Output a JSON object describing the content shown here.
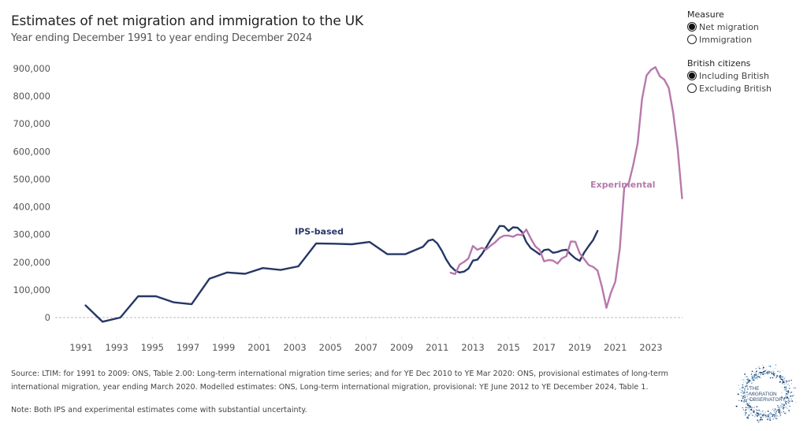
{
  "header": {
    "title": "Estimates of net migration and immigration to the UK",
    "subtitle": "Year ending December 1991 to year ending December 2024"
  },
  "filters": {
    "measure": {
      "title": "Measure",
      "options": [
        {
          "label": "Net migration",
          "selected": true
        },
        {
          "label": "Immigration",
          "selected": false
        }
      ]
    },
    "british_citizens": {
      "title": "British citizens",
      "options": [
        {
          "label": "Including British",
          "selected": true
        },
        {
          "label": "Excluding British",
          "selected": false
        }
      ]
    }
  },
  "footer": {
    "source_line1": "Source: LTIM: for 1991 to 2009: ONS, Table 2.00: Long-term international migration time series; and for YE Dec 2010 to YE Mar 2020: ONS, provisional estimates of long-term",
    "source_line2": "international migration, year ending March 2020. Modelled estimates: ONS, Long-term international migration, provisional: YE June 2012 to YE December 2024, Table 1.",
    "note": "Note: Both IPS and experimental estimates come with substantial uncertainty."
  },
  "logo": {
    "lines": [
      "THE",
      "MIGRATION",
      "OBSERVATORY"
    ]
  },
  "colors": {
    "ips": "#263766",
    "experimental": "#B779AC",
    "zero_line": "#bbbbbb",
    "axis_text": "#555555"
  },
  "chart_data": {
    "type": "line",
    "title": "Estimates of net migration and immigration to the UK",
    "subtitle": "Year ending December 1991 to year ending December 2024",
    "xlabel": "",
    "ylabel": "",
    "xlim": [
      1990.5,
      2024.8
    ],
    "ylim": [
      -30000,
      940000
    ],
    "x_ticks": [
      1991,
      1993,
      1995,
      1997,
      1999,
      2001,
      2003,
      2005,
      2007,
      2009,
      2011,
      2013,
      2015,
      2017,
      2019,
      2021,
      2023
    ],
    "y_ticks": [
      0,
      100000,
      200000,
      300000,
      400000,
      500000,
      600000,
      700000,
      800000,
      900000
    ],
    "y_tick_labels": [
      "0",
      "100,000",
      "200,000",
      "300,000",
      "400,000",
      "500,000",
      "600,000",
      "700,000",
      "800,000",
      "900,000"
    ],
    "grid": false,
    "zero_line": "dashed",
    "series": [
      {
        "name": "IPS-based",
        "label": "IPS-based",
        "x": [
          1991.25,
          1992.2,
          1993.2,
          1994.2,
          1995.2,
          1996.2,
          1997.2,
          1998.2,
          1999.2,
          2000.2,
          2001.2,
          2002.2,
          2003.2,
          2004.2,
          2005.2,
          2006.2,
          2007.2,
          2008.2,
          2009.2,
          2010.2,
          2010.5,
          2010.75,
          2011.0,
          2011.25,
          2011.5,
          2011.75,
          2012.0,
          2012.25,
          2012.5,
          2012.75,
          2013.0,
          2013.25,
          2013.5,
          2013.75,
          2014.0,
          2014.25,
          2014.5,
          2014.75,
          2015.0,
          2015.25,
          2015.5,
          2015.75,
          2016.0,
          2016.25,
          2016.5,
          2016.75,
          2017.0,
          2017.25,
          2017.5,
          2017.75,
          2018.0,
          2018.25,
          2018.5,
          2018.75,
          2019.0,
          2019.25,
          2019.5,
          2019.75,
          2020.0
        ],
        "values": [
          44000,
          -15000,
          0,
          77000,
          77000,
          55000,
          48000,
          140000,
          163000,
          158000,
          179000,
          172000,
          185000,
          268000,
          267000,
          265000,
          273000,
          229000,
          229000,
          256000,
          278000,
          282000,
          268000,
          242000,
          210000,
          185000,
          170000,
          163000,
          166000,
          177000,
          206000,
          209000,
          229000,
          254000,
          282000,
          305000,
          331000,
          330000,
          313000,
          326000,
          325000,
          310000,
          273000,
          251000,
          240000,
          228000,
          244000,
          246000,
          234000,
          237000,
          243000,
          245000,
          228000,
          214000,
          205000,
          235000,
          258000,
          280000,
          313000
        ]
      },
      {
        "name": "Experimental",
        "label": "Experimental",
        "x": [
          2011.75,
          2012.0,
          2012.25,
          2012.5,
          2012.75,
          2013.0,
          2013.25,
          2013.5,
          2013.75,
          2014.0,
          2014.25,
          2014.5,
          2014.75,
          2015.0,
          2015.25,
          2015.5,
          2015.75,
          2016.0,
          2016.25,
          2016.5,
          2016.75,
          2017.0,
          2017.25,
          2017.5,
          2017.75,
          2018.0,
          2018.25,
          2018.5,
          2018.75,
          2019.0,
          2019.25,
          2019.5,
          2019.75,
          2020.0,
          2020.25,
          2020.5,
          2020.75,
          2021.0,
          2021.25,
          2021.5,
          2021.75,
          2022.0,
          2022.25,
          2022.5,
          2022.75,
          2023.0,
          2023.25,
          2023.5,
          2023.75,
          2024.0,
          2024.25,
          2024.5,
          2024.75
        ],
        "values": [
          162000,
          157000,
          191000,
          201000,
          214000,
          259000,
          245000,
          252000,
          246000,
          260000,
          272000,
          288000,
          296000,
          296000,
          292000,
          300000,
          298000,
          318000,
          286000,
          258000,
          244000,
          203000,
          208000,
          206000,
          195000,
          214000,
          222000,
          275000,
          274000,
          232000,
          211000,
          190000,
          183000,
          170000,
          110000,
          35000,
          90000,
          130000,
          250000,
          470000,
          485000,
          550000,
          630000,
          790000,
          875000,
          895000,
          905000,
          872000,
          860000,
          830000,
          740000,
          610000,
          431000
        ]
      }
    ],
    "annotations": [
      {
        "text": "IPS-based",
        "series": "IPS-based",
        "x": 2003.0,
        "y": 300000
      },
      {
        "text": "Experimental",
        "series": "Experimental",
        "x": 2019.6,
        "y": 470000
      }
    ],
    "legend": "top-right (interactive filters)"
  }
}
